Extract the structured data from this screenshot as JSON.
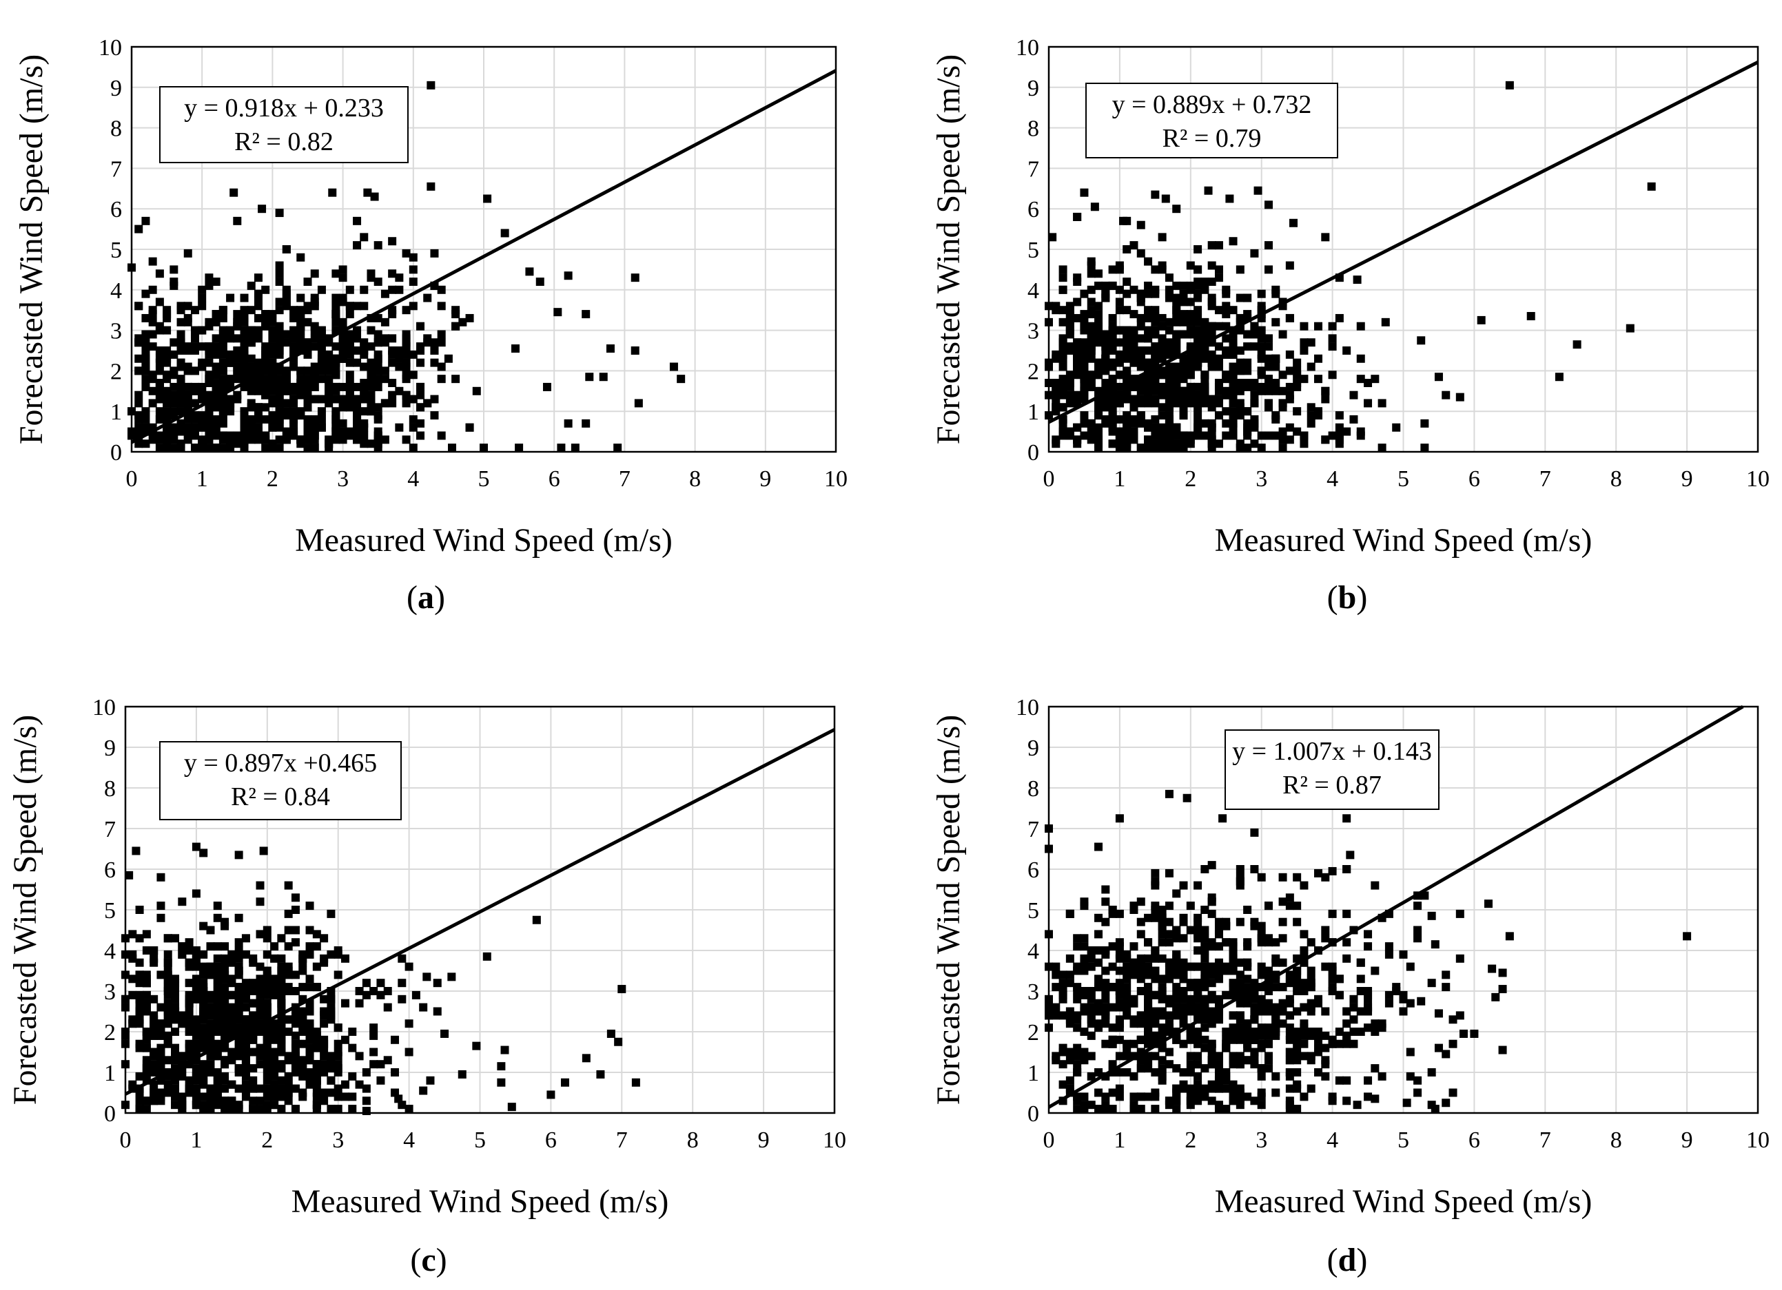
{
  "chart_data": [
    {
      "panel": "a",
      "caption_open": "(",
      "caption_letter": "a",
      "caption_close": ")",
      "type": "scatter",
      "xlabel": "Measured Wind Speed (m/s)",
      "ylabel": "Forecasted Wind Speed (m/s)",
      "xlim": [
        0,
        10
      ],
      "ylim": [
        0,
        10
      ],
      "x_ticks": [
        "0",
        "1",
        "2",
        "3",
        "4",
        "5",
        "6",
        "7",
        "8",
        "9",
        "10"
      ],
      "y_ticks": [
        "0",
        "1",
        "2",
        "3",
        "4",
        "5",
        "6",
        "7",
        "8",
        "9",
        "10"
      ],
      "grid": true,
      "equation": "y = 0.918x + 0.233",
      "r_squared": "R² = 0.82",
      "trendline": {
        "slope": 0.918,
        "intercept": 0.233
      },
      "cluster": {
        "count": 950,
        "seed": 11,
        "mx": 2.0,
        "sx": 1.2,
        "xmax": 5.5,
        "slope": 0.15,
        "mean_y": 1.8,
        "sy": 1.25,
        "ymax": 6.2
      },
      "points": [
        [
          0,
          4.55
        ],
        [
          0.1,
          5.5
        ],
        [
          0.2,
          5.7
        ],
        [
          0.3,
          4.7
        ],
        [
          1.45,
          6.4
        ],
        [
          1.85,
          6.0
        ],
        [
          2.1,
          5.9
        ],
        [
          2.85,
          6.4
        ],
        [
          3.35,
          6.4
        ],
        [
          3.45,
          6.3
        ],
        [
          4.25,
          9.05
        ],
        [
          4.25,
          6.55
        ],
        [
          5.05,
          6.25
        ],
        [
          5.3,
          5.4
        ],
        [
          5.65,
          4.45
        ],
        [
          5.8,
          4.2
        ],
        [
          6.05,
          3.45
        ],
        [
          6.2,
          4.35
        ],
        [
          6.45,
          3.4
        ],
        [
          6.8,
          2.55
        ],
        [
          7.15,
          2.5
        ],
        [
          7.15,
          4.3
        ],
        [
          7.2,
          1.2
        ],
        [
          7.7,
          2.1
        ],
        [
          7.8,
          1.8
        ],
        [
          6.5,
          1.85
        ],
        [
          6.7,
          1.85
        ],
        [
          6.1,
          0.1
        ],
        [
          6.3,
          0.1
        ],
        [
          6.9,
          0.1
        ],
        [
          6.45,
          0.7
        ],
        [
          6.2,
          0.7
        ],
        [
          5.5,
          0.1
        ],
        [
          5.0,
          0.1
        ],
        [
          4.55,
          0.1
        ],
        [
          5.45,
          2.55
        ],
        [
          5.9,
          1.6
        ]
      ]
    },
    {
      "panel": "b",
      "caption_open": "(",
      "caption_letter": "b",
      "caption_close": ")",
      "type": "scatter",
      "xlabel": "Measured Wind Speed (m/s)",
      "ylabel": "Forecasted Wind Speed (m/s)",
      "xlim": [
        0,
        10
      ],
      "ylim": [
        0,
        10
      ],
      "x_ticks": [
        "0",
        "1",
        "2",
        "3",
        "4",
        "5",
        "6",
        "7",
        "8",
        "9",
        "10"
      ],
      "y_ticks": [
        "0",
        "1",
        "2",
        "3",
        "4",
        "5",
        "6",
        "7",
        "8",
        "9",
        "10"
      ],
      "grid": true,
      "equation": "y = 0.889x + 0.732",
      "r_squared": "R² = 0.79",
      "trendline": {
        "slope": 0.889,
        "intercept": 0.732
      },
      "cluster": {
        "count": 950,
        "seed": 23,
        "mx": 1.6,
        "sx": 1.15,
        "xmax": 5.0,
        "slope": -0.1,
        "mean_y": 1.95,
        "sy": 1.3,
        "ymax": 6.2
      },
      "points": [
        [
          0.05,
          5.3
        ],
        [
          0.5,
          6.4
        ],
        [
          0.65,
          6.05
        ],
        [
          1.05,
          5.7
        ],
        [
          1.5,
          6.35
        ],
        [
          1.65,
          6.25
        ],
        [
          2.25,
          6.45
        ],
        [
          2.55,
          6.25
        ],
        [
          2.95,
          6.45
        ],
        [
          3.45,
          5.65
        ],
        [
          6.5,
          9.05
        ],
        [
          8.5,
          6.55
        ],
        [
          6.1,
          3.25
        ],
        [
          6.8,
          3.35
        ],
        [
          7.45,
          2.65
        ],
        [
          8.2,
          3.05
        ],
        [
          7.2,
          1.85
        ],
        [
          5.5,
          1.85
        ],
        [
          5.6,
          1.4
        ],
        [
          5.8,
          1.35
        ],
        [
          5.3,
          0.7
        ],
        [
          5.3,
          0.1
        ],
        [
          4.7,
          0.1
        ],
        [
          4.75,
          3.2
        ],
        [
          5.25,
          2.75
        ],
        [
          4.35,
          4.25
        ]
      ]
    },
    {
      "panel": "c",
      "caption_open": "(",
      "caption_letter": "c",
      "caption_close": ")",
      "type": "scatter",
      "xlabel": "Measured Wind Speed (m/s)",
      "ylabel": "Forecasted Wind Speed (m/s)",
      "xlim": [
        0,
        10
      ],
      "ylim": [
        0,
        10
      ],
      "x_ticks": [
        "0",
        "1",
        "2",
        "3",
        "4",
        "5",
        "6",
        "7",
        "8",
        "9",
        "10"
      ],
      "y_ticks": [
        "0",
        "1",
        "2",
        "3",
        "4",
        "5",
        "6",
        "7",
        "8",
        "9",
        "10"
      ],
      "grid": true,
      "equation": "y = 0.897x +0.465",
      "r_squared": "R² = 0.84",
      "trendline": {
        "slope": 0.897,
        "intercept": 0.465
      },
      "cluster": {
        "count": 900,
        "seed": 37,
        "mx": 1.6,
        "sx": 1.0,
        "xmax": 4.6,
        "slope": 0.0,
        "mean_y": 2.1,
        "sy": 1.3,
        "ymax": 6.2
      },
      "points": [
        [
          0.05,
          5.85
        ],
        [
          0.15,
          6.45
        ],
        [
          1.0,
          6.55
        ],
        [
          1.1,
          6.4
        ],
        [
          1.6,
          6.35
        ],
        [
          1.95,
          6.45
        ],
        [
          4.25,
          3.35
        ],
        [
          4.6,
          3.35
        ],
        [
          5.1,
          3.85
        ],
        [
          5.8,
          4.75
        ],
        [
          7.0,
          3.05
        ],
        [
          6.85,
          1.95
        ],
        [
          6.95,
          1.75
        ],
        [
          6.5,
          1.35
        ],
        [
          6.7,
          0.95
        ],
        [
          7.2,
          0.75
        ],
        [
          6.2,
          0.75
        ],
        [
          6.0,
          0.45
        ],
        [
          5.45,
          0.15
        ],
        [
          5.35,
          1.55
        ],
        [
          5.3,
          1.15
        ],
        [
          5.3,
          0.75
        ],
        [
          4.95,
          1.65
        ],
        [
          4.75,
          0.95
        ],
        [
          4.5,
          1.95
        ],
        [
          4.2,
          0.55
        ],
        [
          3.85,
          0.35
        ],
        [
          3.4,
          0.05
        ]
      ]
    },
    {
      "panel": "d",
      "caption_open": "(",
      "caption_letter": "d",
      "caption_close": ")",
      "type": "scatter",
      "xlabel": "Measured Wind Speed (m/s)",
      "ylabel": "Forecasted Wind Speed (m/s)",
      "xlim": [
        0,
        10
      ],
      "ylim": [
        0,
        10
      ],
      "x_ticks": [
        "0",
        "1",
        "2",
        "3",
        "4",
        "5",
        "6",
        "7",
        "8",
        "9",
        "10"
      ],
      "y_ticks": [
        "0",
        "1",
        "2",
        "3",
        "4",
        "5",
        "6",
        "7",
        "8",
        "9",
        "10"
      ],
      "grid": true,
      "equation": "y = 1.007x + 0.143",
      "r_squared": "R² = 0.87",
      "trendline": {
        "slope": 1.007,
        "intercept": 0.143
      },
      "cluster": {
        "count": 950,
        "seed": 53,
        "mx": 2.2,
        "sx": 1.3,
        "xmax": 6.0,
        "slope": 0.0,
        "mean_y": 2.6,
        "sy": 1.4,
        "ymax": 7.0
      },
      "points": [
        [
          0.0,
          7.0
        ],
        [
          0.0,
          6.5
        ],
        [
          0.7,
          6.55
        ],
        [
          1.0,
          7.25
        ],
        [
          1.7,
          7.85
        ],
        [
          1.95,
          7.75
        ],
        [
          2.45,
          7.25
        ],
        [
          4.2,
          7.25
        ],
        [
          4.25,
          6.35
        ],
        [
          4.0,
          5.95
        ],
        [
          5.2,
          5.35
        ],
        [
          5.3,
          5.35
        ],
        [
          5.4,
          4.85
        ],
        [
          5.45,
          4.15
        ],
        [
          6.2,
          5.15
        ],
        [
          6.5,
          4.35
        ],
        [
          9.0,
          4.35
        ],
        [
          6.25,
          3.55
        ],
        [
          6.4,
          3.45
        ],
        [
          6.4,
          3.05
        ],
        [
          6.3,
          2.85
        ],
        [
          6.0,
          1.95
        ],
        [
          5.85,
          1.95
        ],
        [
          6.4,
          1.55
        ],
        [
          5.6,
          1.45
        ],
        [
          5.6,
          0.25
        ],
        [
          5.4,
          0.2
        ],
        [
          5.45,
          0.1
        ],
        [
          5.05,
          0.25
        ],
        [
          4.6,
          0.35
        ],
        [
          4.35,
          0.2
        ],
        [
          5.0,
          2.5
        ],
        [
          5.25,
          2.75
        ],
        [
          5.5,
          2.45
        ]
      ]
    }
  ]
}
